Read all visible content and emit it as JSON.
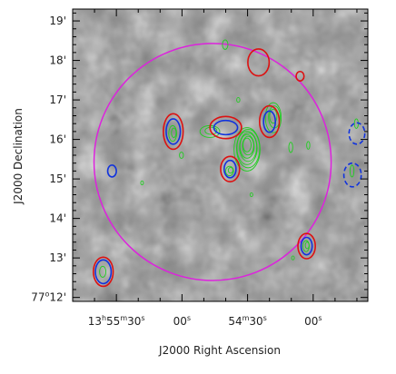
{
  "chart_data": {
    "type": "contour",
    "xlabel": "J2000 Right Ascension",
    "ylabel": "J2000 Declination",
    "colors": {
      "circle": "#dd22dd",
      "red_contours": "#dd1111",
      "blue_contours": "#1133dd",
      "green_contours": "#22cc22",
      "frame": "#000000"
    },
    "x_ticks": [
      {
        "ra_seconds": 30,
        "hms": "13h55m30s",
        "parts": [
          {
            "t": "13"
          },
          {
            "t": "h",
            "s": true
          },
          {
            "t": "55"
          },
          {
            "t": "m",
            "s": true
          },
          {
            "t": "30"
          },
          {
            "t": "s",
            "s": true
          }
        ]
      },
      {
        "ra_seconds": 0,
        "hms": "13h55m00s",
        "parts": [
          {
            "t": "00"
          },
          {
            "t": "s",
            "s": true
          }
        ]
      },
      {
        "ra_seconds": -30,
        "hms": "13h54m30s",
        "parts": [
          {
            "t": "54"
          },
          {
            "t": "m",
            "s": true
          },
          {
            "t": "30"
          },
          {
            "t": "s",
            "s": true
          }
        ]
      },
      {
        "ra_seconds": -60,
        "hms": "13h54m00s",
        "parts": [
          {
            "t": "00"
          },
          {
            "t": "s",
            "s": true
          }
        ]
      }
    ],
    "y_ticks": [
      {
        "dec_arcmin": 12,
        "parts": [
          {
            "t": "77"
          },
          {
            "t": "o",
            "s": true
          },
          {
            "t": "12'"
          }
        ]
      },
      {
        "dec_arcmin": 13,
        "parts": [
          {
            "t": "13'"
          }
        ]
      },
      {
        "dec_arcmin": 14,
        "parts": [
          {
            "t": "14'"
          }
        ]
      },
      {
        "dec_arcmin": 15,
        "parts": [
          {
            "t": "15'"
          }
        ]
      },
      {
        "dec_arcmin": 16,
        "parts": [
          {
            "t": "16'"
          }
        ]
      },
      {
        "dec_arcmin": 17,
        "parts": [
          {
            "t": "17'"
          }
        ]
      },
      {
        "dec_arcmin": 18,
        "parts": [
          {
            "t": "18'"
          }
        ]
      },
      {
        "dec_arcmin": 19,
        "parts": [
          {
            "t": "19'"
          }
        ]
      }
    ],
    "x_range_ra_seconds": [
      50,
      -85
    ],
    "y_range_dec_arcmin": [
      11.9,
      19.3
    ],
    "field_circle": {
      "center_ra_seconds": -14,
      "center_dec_arcmin": 15.43,
      "radius_arcmin": 3.0
    },
    "sources": [
      {
        "id": "top-mid",
        "ra": -35,
        "dec": 17.95,
        "contours": [
          {
            "color": "red",
            "a": 0.27,
            "b": 0.34
          }
        ]
      },
      {
        "id": "small-right",
        "ra": -54,
        "dec": 17.6,
        "contours": [
          {
            "color": "red",
            "a": 0.1,
            "b": 0.12
          }
        ]
      },
      {
        "id": "left-center",
        "ra": 4,
        "dec": 16.2,
        "contours": [
          {
            "color": "red",
            "a": 0.25,
            "b": 0.45
          },
          {
            "color": "blue",
            "a": 0.18,
            "b": 0.32
          }
        ]
      },
      {
        "id": "center",
        "ra": -20,
        "dec": 16.3,
        "contours": [
          {
            "color": "red",
            "a": 0.4,
            "b": 0.28
          },
          {
            "color": "blue",
            "a": 0.3,
            "b": 0.18
          }
        ]
      },
      {
        "id": "center-right",
        "ra": -40,
        "dec": 16.45,
        "contours": [
          {
            "color": "red",
            "a": 0.25,
            "b": 0.4
          },
          {
            "color": "blue",
            "a": 0.15,
            "b": 0.27
          }
        ]
      },
      {
        "id": "lower-center",
        "ra": -22,
        "dec": 15.25,
        "contours": [
          {
            "color": "red",
            "a": 0.24,
            "b": 0.32
          },
          {
            "color": "blue",
            "a": 0.15,
            "b": 0.22
          }
        ]
      },
      {
        "id": "far-right-upper",
        "ra": -80,
        "dec": 16.15,
        "contours": [
          {
            "color": "blue",
            "dashed": true,
            "a": 0.2,
            "b": 0.27
          }
        ]
      },
      {
        "id": "far-right-lower",
        "ra": -78,
        "dec": 15.1,
        "contours": [
          {
            "color": "blue",
            "dashed": true,
            "a": 0.22,
            "b": 0.3
          }
        ]
      },
      {
        "id": "left-edge",
        "ra": 32,
        "dec": 15.2,
        "contours": [
          {
            "color": "blue",
            "a": 0.11,
            "b": 0.15
          }
        ]
      },
      {
        "id": "bottom-right",
        "ra": -57,
        "dec": 13.3,
        "contours": [
          {
            "color": "red",
            "a": 0.22,
            "b": 0.32
          },
          {
            "color": "blue",
            "a": 0.14,
            "b": 0.22
          }
        ]
      },
      {
        "id": "bottom-left",
        "ra": 36,
        "dec": 12.65,
        "contours": [
          {
            "color": "red",
            "a": 0.25,
            "b": 0.37
          },
          {
            "color": "blue",
            "a": 0.2,
            "b": 0.3
          }
        ]
      }
    ],
    "green_emission": [
      {
        "id": "core",
        "ra": -30,
        "dec": 15.75,
        "a": 0.33,
        "b": 0.55,
        "levels": 7
      },
      {
        "id": "ridge",
        "ra": -42,
        "dec": 16.55,
        "a": 0.2,
        "b": 0.38,
        "levels": 3
      },
      {
        "id": "arc-left",
        "ra": -13,
        "dec": 16.2,
        "a": 0.25,
        "b": 0.15,
        "levels": 2
      },
      {
        "id": "plume-top",
        "ra": -20,
        "dec": 18.4,
        "a": 0.07,
        "b": 0.12,
        "levels": 1
      },
      {
        "id": "knot-left",
        "ra": 4,
        "dec": 16.15,
        "a": 0.1,
        "b": 0.2,
        "levels": 2
      },
      {
        "id": "knot-lower",
        "ra": -22,
        "dec": 15.2,
        "a": 0.1,
        "b": 0.12,
        "levels": 2
      },
      {
        "id": "knot-br",
        "ra": -57,
        "dec": 13.3,
        "a": 0.08,
        "b": 0.14,
        "levels": 2
      },
      {
        "id": "knot-bl",
        "ra": 36,
        "dec": 12.65,
        "a": 0.08,
        "b": 0.14,
        "levels": 1
      },
      {
        "id": "knot-fr",
        "ra": -78,
        "dec": 15.2,
        "a": 0.05,
        "b": 0.15,
        "levels": 1
      },
      {
        "id": "knot-fr2",
        "ra": -80,
        "dec": 16.4,
        "a": 0.05,
        "b": 0.12,
        "levels": 1
      },
      {
        "id": "wisp-1",
        "ra": -50,
        "dec": 15.8,
        "a": 0.05,
        "b": 0.13,
        "levels": 1
      },
      {
        "id": "wisp-2",
        "ra": -58,
        "dec": 15.85,
        "a": 0.04,
        "b": 0.1,
        "levels": 1
      },
      {
        "id": "wisp-3",
        "ra": 0,
        "dec": 15.6,
        "a": 0.05,
        "b": 0.08,
        "levels": 1
      },
      {
        "id": "wisp-4",
        "ra": 18,
        "dec": 14.9,
        "a": 0.03,
        "b": 0.05,
        "levels": 1
      },
      {
        "id": "wisp-5",
        "ra": -26,
        "dec": 17.0,
        "a": 0.04,
        "b": 0.06,
        "levels": 1
      },
      {
        "id": "wisp-6",
        "ra": -32,
        "dec": 14.6,
        "a": 0.03,
        "b": 0.05,
        "levels": 1
      },
      {
        "id": "wisp-7",
        "ra": -51,
        "dec": 13.0,
        "a": 0.03,
        "b": 0.05,
        "levels": 1
      }
    ]
  }
}
